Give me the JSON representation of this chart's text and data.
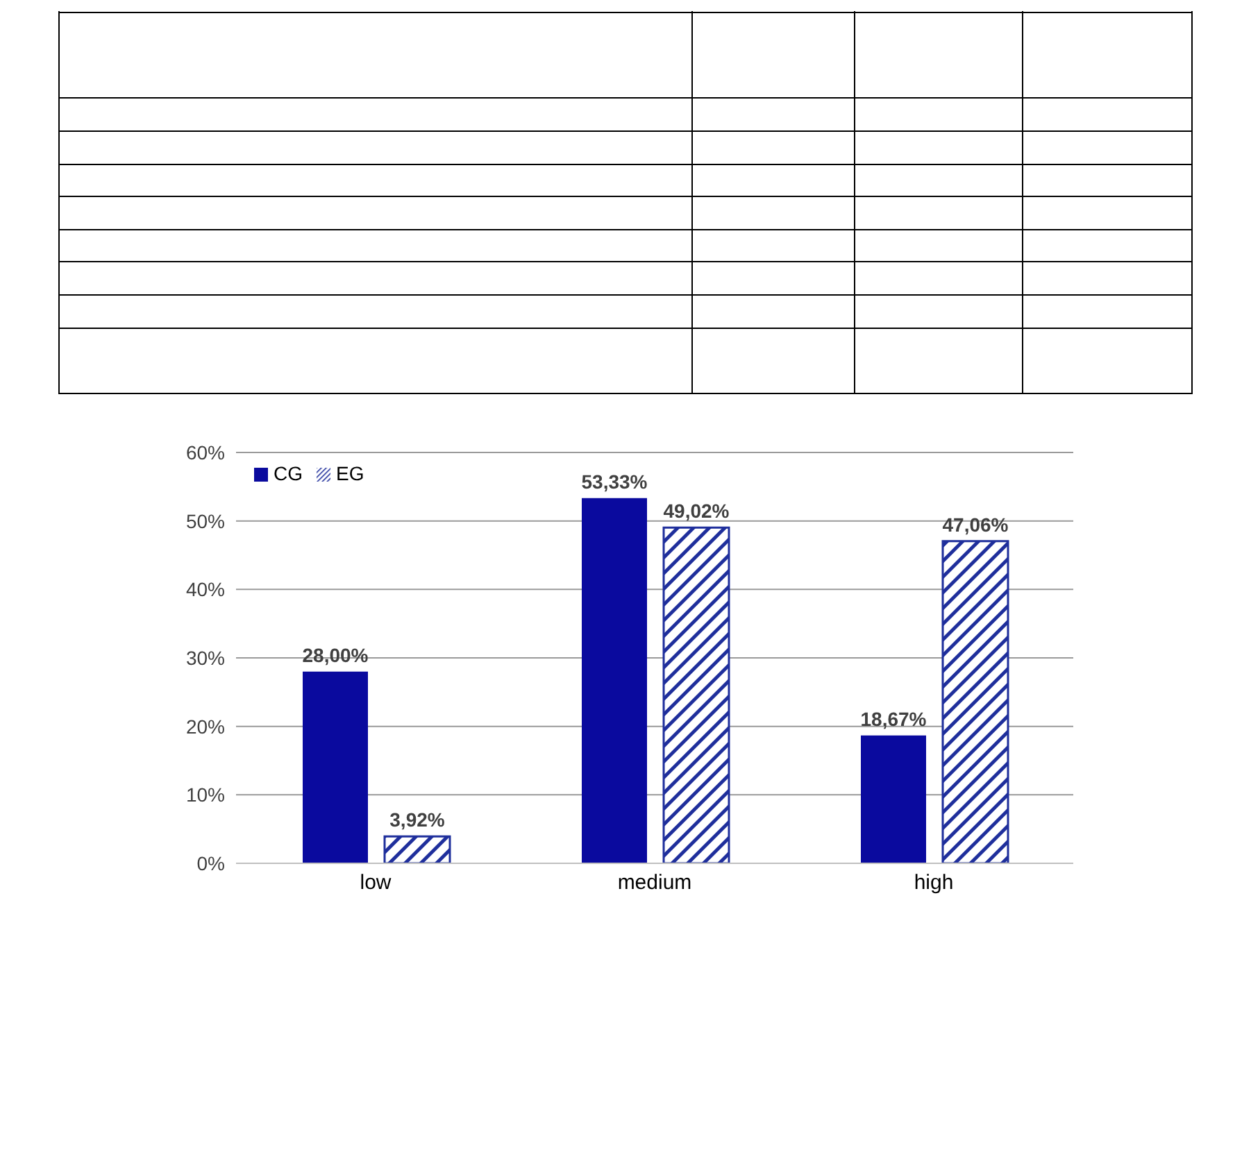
{
  "chart_data": {
    "type": "bar",
    "categories": [
      "low",
      "medium",
      "high"
    ],
    "series": [
      {
        "name": "CG",
        "color": "#0a0a9e",
        "values": [
          28.0,
          53.33,
          18.67
        ],
        "value_labels": [
          "28,00%",
          "53,33%",
          "18,67%"
        ]
      },
      {
        "name": "EG",
        "color": "#1f2f9c",
        "values": [
          3.92,
          49.02,
          47.06
        ],
        "value_labels": [
          "3,92%",
          "49,02%",
          "47,06%"
        ]
      }
    ],
    "ylim": [
      0,
      60
    ],
    "yticks": [
      {
        "value": 0,
        "label": "0%"
      },
      {
        "value": 10,
        "label": "10%"
      },
      {
        "value": 20,
        "label": "20%"
      },
      {
        "value": 30,
        "label": "30%"
      },
      {
        "value": 40,
        "label": "40%"
      },
      {
        "value": 50,
        "label": "50%"
      },
      {
        "value": 60,
        "label": "60%"
      }
    ],
    "grid": "y",
    "legend": "top left"
  }
}
